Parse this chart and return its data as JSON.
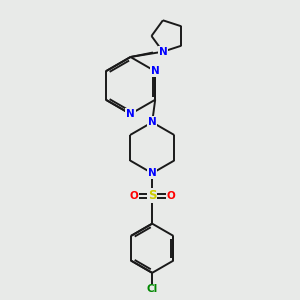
{
  "bg_color": "#e8eae8",
  "bond_color": "#1a1a1a",
  "N_color": "#0000ff",
  "S_color": "#cccc00",
  "O_color": "#ff0000",
  "Cl_color": "#008800",
  "bond_width": 1.4,
  "fig_w": 3.0,
  "fig_h": 3.0,
  "dpi": 100,
  "xlim": [
    0,
    10
  ],
  "ylim": [
    0,
    10
  ]
}
